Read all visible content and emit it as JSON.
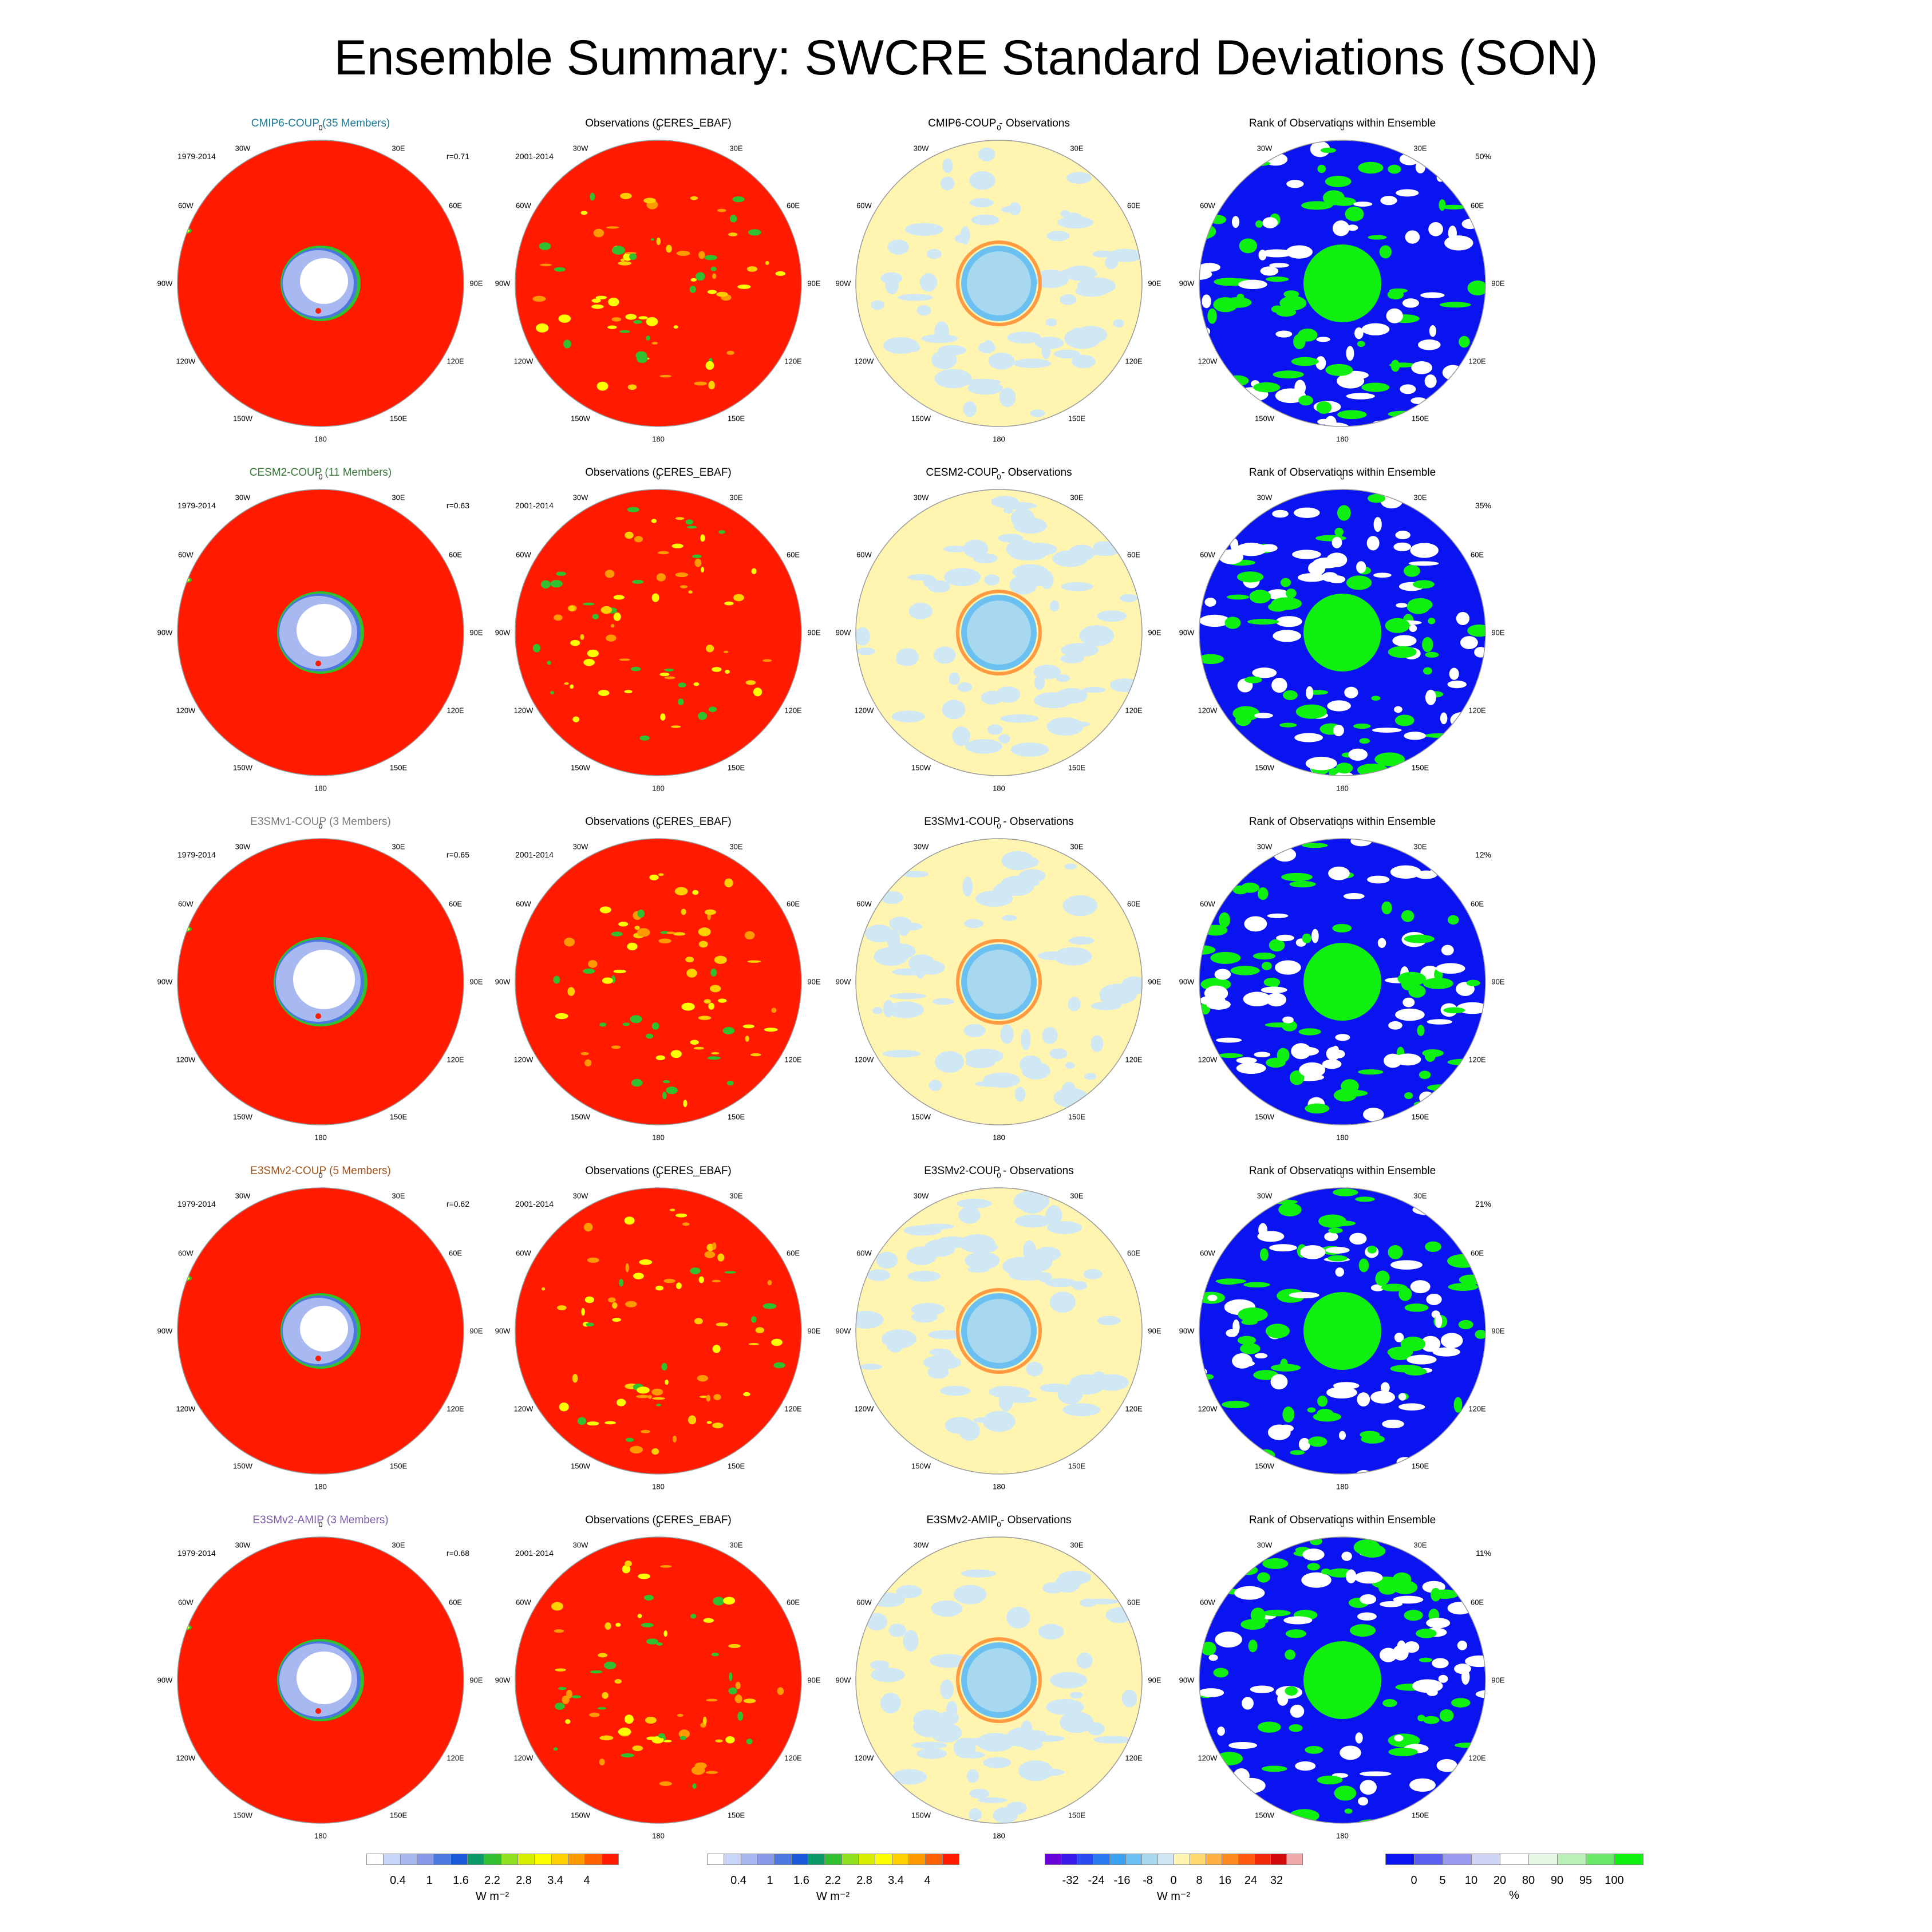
{
  "title": "Ensemble Summary: SWCRE Standard Deviations (SON)",
  "lon_labels": [
    "0",
    "30E",
    "60E",
    "90E",
    "120E",
    "150E",
    "180",
    "150W",
    "120W",
    "90W",
    "60W",
    "30W"
  ],
  "rows": [
    {
      "model_title": "CMIP6-COUP (35 Members)",
      "model_color": "#1a7a9a",
      "model_period": "1979-2014",
      "corr": "r=0.71",
      "obs_title": "Observations (CERES_EBAF)",
      "obs_period": "2001-2014",
      "diff_title": "CMIP6-COUP - Observations",
      "rank_title": "Rank of Observations within Ensemble",
      "rank_pct": "50%"
    },
    {
      "model_title": "CESM2-COUP (11 Members)",
      "model_color": "#3a7a3a",
      "model_period": "1979-2014",
      "corr": "r=0.63",
      "obs_title": "Observations (CERES_EBAF)",
      "obs_period": "2001-2014",
      "diff_title": "CESM2-COUP - Observations",
      "rank_title": "Rank of Observations within Ensemble",
      "rank_pct": "35%"
    },
    {
      "model_title": "E3SMv1-COUP (3 Members)",
      "model_color": "#7a7a7a",
      "model_period": "1979-2014",
      "corr": "r=0.65",
      "obs_title": "Observations (CERES_EBAF)",
      "obs_period": "2001-2014",
      "diff_title": "E3SMv1-COUP - Observations",
      "rank_title": "Rank of Observations within Ensemble",
      "rank_pct": "12%"
    },
    {
      "model_title": "E3SMv2-COUP (5 Members)",
      "model_color": "#a0521a",
      "model_period": "1979-2014",
      "corr": "r=0.62",
      "obs_title": "Observations (CERES_EBAF)",
      "obs_period": "2001-2014",
      "diff_title": "E3SMv2-COUP - Observations",
      "rank_title": "Rank of Observations within Ensemble",
      "rank_pct": "21%"
    },
    {
      "model_title": "E3SMv2-AMIP (3 Members)",
      "model_color": "#7a5aa8",
      "model_period": "1979-2014",
      "corr": "r=0.68",
      "obs_title": "Observations (CERES_EBAF)",
      "obs_period": "2001-2014",
      "diff_title": "E3SMv2-AMIP - Observations",
      "rank_title": "Rank of Observations within Ensemble",
      "rank_pct": "11%"
    }
  ],
  "colorbars": {
    "std": {
      "ticks": [
        "0.4",
        "1",
        "1.6",
        "2.2",
        "2.8",
        "3.4",
        "4"
      ],
      "unit": "W m⁻²",
      "colors": [
        "#ffffff",
        "#c8d4f8",
        "#a8b8f0",
        "#8898e8",
        "#4a78e0",
        "#1a5ad8",
        "#0a9a6a",
        "#30c030",
        "#90e020",
        "#d8f000",
        "#ffff00",
        "#ffd000",
        "#ff9a00",
        "#ff6000",
        "#ff1a00"
      ]
    },
    "diff": {
      "ticks": [
        "-32",
        "-24",
        "-16",
        "-8",
        "0",
        "8",
        "16",
        "24",
        "32"
      ],
      "unit": "W m⁻²",
      "colors": [
        "#6a00d8",
        "#3a1ae8",
        "#2a4af0",
        "#2a7af0",
        "#3aa0f0",
        "#6ac0f0",
        "#a8d8f0",
        "#d0e8f4",
        "#fff4b0",
        "#ffd870",
        "#ffb040",
        "#ff8a20",
        "#ff5a10",
        "#f02a0a",
        "#d00a0a",
        "#f0a8a8"
      ]
    },
    "rank": {
      "ticks": [
        "0",
        "5",
        "10",
        "20",
        "80",
        "90",
        "95",
        "100"
      ],
      "unit": "%",
      "colors": [
        "#0a14f0",
        "#5a60f0",
        "#9a9af0",
        "#d0d4f4",
        "#ffffff",
        "#e4f8e4",
        "#b8f0b8",
        "#6ae86a",
        "#10f010"
      ]
    }
  },
  "map_colors": {
    "std_high": "#ff1a00",
    "ice": "#ffffff",
    "diff_base": "#fff4b0",
    "rank_blue": "#0a14f0",
    "rank_green": "#10f010"
  }
}
